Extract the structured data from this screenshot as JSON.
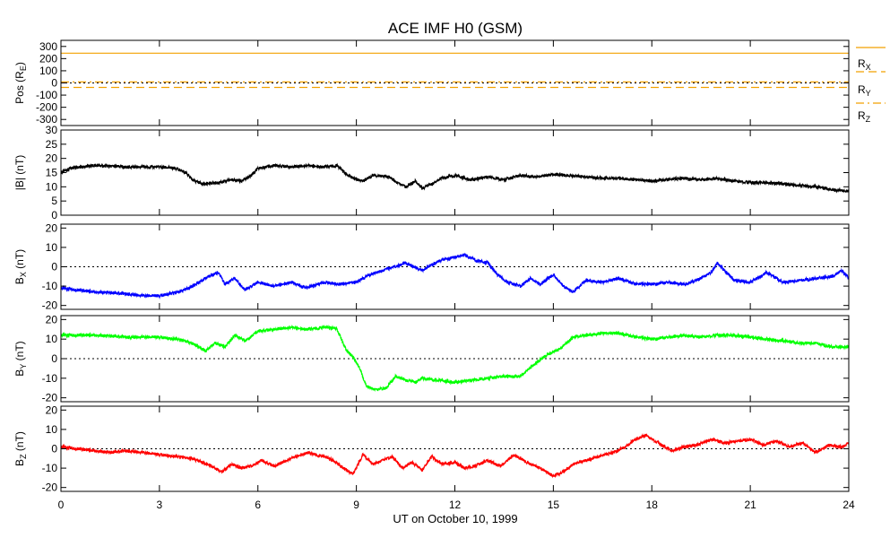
{
  "chart_data": {
    "title": "ACE IMF H0 (GSM)",
    "xlabel": "UT on October 10, 1999",
    "x_ticks": [
      "0",
      "3",
      "6",
      "9",
      "12",
      "15",
      "18",
      "21",
      "24"
    ],
    "xlim": [
      0,
      24
    ],
    "panels": [
      {
        "id": "pos",
        "type": "line",
        "ylabel": "Pos (R",
        "ylabel_sub": "E",
        "ylabel_end": ")",
        "ylim": [
          -350,
          350
        ],
        "y_ticks": [
          "300",
          "200",
          "100",
          "0",
          "-100",
          "-200",
          "-300"
        ],
        "y_tick_values": [
          300,
          200,
          100,
          0,
          -100,
          -200,
          -300
        ],
        "zero_line": true,
        "series": [
          {
            "name": "R",
            "sub": "X",
            "color": "#f2a100",
            "dash": "solid",
            "x": [
              0,
              24
            ],
            "y": [
              245,
              245
            ]
          },
          {
            "name": "R",
            "sub": "Y",
            "color": "#f2a100",
            "dash": "dash",
            "x": [
              0,
              24
            ],
            "y": [
              -37,
              -37
            ]
          },
          {
            "name": "R",
            "sub": "Z",
            "color": "#f2a100",
            "dash": "dashdot",
            "x": [
              0,
              24
            ],
            "y": [
              8,
              8
            ]
          }
        ]
      },
      {
        "id": "b",
        "type": "line",
        "ylabel": "|B| (nT)",
        "ylim": [
          0,
          30
        ],
        "y_ticks": [
          "30",
          "25",
          "20",
          "15",
          "10",
          "5",
          "0"
        ],
        "y_tick_values": [
          30,
          25,
          20,
          15,
          10,
          5,
          0
        ],
        "zero_line": false,
        "series": [
          {
            "name": "|B|",
            "color": "#000000",
            "x": [
              0,
              0.3,
              0.6,
              1,
              2,
              3,
              3.5,
              3.8,
              4,
              4.3,
              4.8,
              5.2,
              5.5,
              5.8,
              6,
              6.5,
              7,
              7.5,
              8,
              8.4,
              8.7,
              8.9,
              9.2,
              9.5,
              10,
              10.3,
              10.5,
              10.8,
              11,
              11.3,
              11.6,
              12,
              12.5,
              13,
              13.5,
              14,
              14.5,
              15,
              15.5,
              16,
              16.5,
              17,
              17.5,
              18,
              18.5,
              19,
              19.5,
              20,
              20.5,
              21,
              21.5,
              22,
              22.5,
              23,
              23.5,
              24
            ],
            "y": [
              15,
              16.5,
              17,
              17.5,
              17,
              17,
              16.5,
              15,
              12.5,
              11,
              11.5,
              12.5,
              12,
              14,
              16.5,
              17.5,
              17,
              17.5,
              17,
              17.5,
              14.5,
              13,
              12,
              14,
              13.5,
              11,
              10,
              12,
              9.5,
              11,
              13,
              14,
              12.5,
              13.5,
              12.5,
              14,
              13.5,
              14.5,
              14,
              13.5,
              13,
              13,
              12.5,
              12,
              12.5,
              13,
              12.5,
              13,
              12,
              11.5,
              11.5,
              11,
              10.5,
              10,
              9,
              8.5
            ]
          }
        ]
      },
      {
        "id": "bx",
        "type": "line",
        "ylabel": "B",
        "ylabel_sub": "X",
        "ylabel_end": " (nT)",
        "ylim": [
          -22,
          22
        ],
        "y_ticks": [
          "20",
          "10",
          "0",
          "-10",
          "-20"
        ],
        "y_tick_values": [
          20,
          10,
          0,
          -10,
          -20
        ],
        "zero_line": true,
        "series": [
          {
            "name": "Bx",
            "color": "#0000ff",
            "x": [
              0,
              0.5,
              1,
              1.5,
              2,
              2.5,
              3,
              3.3,
              3.6,
              3.9,
              4.2,
              4.5,
              4.8,
              5,
              5.3,
              5.6,
              6,
              6.5,
              7,
              7.5,
              8,
              8.5,
              9,
              9.3,
              9.6,
              10,
              10.5,
              11,
              11.5,
              12,
              12.3,
              12.7,
              13,
              13.3,
              13.6,
              14,
              14.3,
              14.6,
              15,
              15.3,
              15.6,
              16,
              16.5,
              17,
              17.5,
              18,
              18.5,
              19,
              19.5,
              19.8,
              20,
              20.5,
              21,
              21.5,
              22,
              22.5,
              23,
              23.5,
              23.8,
              24
            ],
            "y": [
              -11,
              -12,
              -13,
              -13.5,
              -14,
              -15,
              -15,
              -14,
              -13,
              -11,
              -8,
              -5,
              -3,
              -9,
              -6,
              -12,
              -8,
              -10,
              -8,
              -11,
              -8,
              -9,
              -8,
              -5,
              -3,
              -1,
              2,
              -2,
              3,
              5,
              6,
              3,
              2,
              -4,
              -8,
              -10,
              -6,
              -9,
              -4,
              -10,
              -13,
              -7,
              -8,
              -6,
              -9,
              -9,
              -8,
              -9,
              -6,
              -3,
              2,
              -7,
              -8,
              -3,
              -8,
              -7,
              -6,
              -5,
              -2,
              -6
            ]
          }
        ]
      },
      {
        "id": "by",
        "type": "line",
        "ylabel": "B",
        "ylabel_sub": "Y",
        "ylabel_end": " (nT)",
        "ylim": [
          -22,
          22
        ],
        "y_ticks": [
          "20",
          "10",
          "0",
          "-10",
          "-20"
        ],
        "y_tick_values": [
          20,
          10,
          0,
          -10,
          -20
        ],
        "zero_line": true,
        "series": [
          {
            "name": "By",
            "color": "#00ff00",
            "x": [
              0,
              0.5,
              1,
              1.5,
              2,
              2.5,
              3,
              3.5,
              3.8,
              4.1,
              4.4,
              4.7,
              5,
              5.3,
              5.6,
              6,
              6.5,
              7,
              7.5,
              8,
              8.4,
              8.7,
              8.9,
              9.1,
              9.3,
              9.6,
              9.9,
              10.2,
              10.5,
              10.8,
              11,
              11.5,
              12,
              12.5,
              13,
              13.5,
              14,
              14.4,
              14.8,
              15.2,
              15.6,
              16,
              16.5,
              17,
              17.5,
              18,
              18.5,
              19,
              19.5,
              20,
              20.5,
              21,
              21.5,
              22,
              22.5,
              23,
              23.5,
              24
            ],
            "y": [
              12,
              12,
              12,
              11.5,
              11,
              11,
              11,
              10,
              9,
              7,
              4,
              8,
              6,
              12,
              9,
              14,
              15,
              16,
              15,
              16,
              15.5,
              4,
              1,
              -5,
              -14,
              -16,
              -15,
              -9,
              -11,
              -12,
              -10,
              -11,
              -12,
              -11,
              -10,
              -9,
              -9,
              -3,
              2,
              5,
              11,
              12,
              13,
              13,
              11,
              10,
              11,
              12,
              11,
              12,
              12,
              11,
              10,
              9,
              8,
              8,
              6,
              6
            ]
          }
        ]
      },
      {
        "id": "bz",
        "type": "line",
        "ylabel": "B",
        "ylabel_sub": "Z",
        "ylabel_end": " (nT)",
        "ylim": [
          -22,
          22
        ],
        "y_ticks": [
          "20",
          "10",
          "0",
          "-10",
          "-20"
        ],
        "y_tick_values": [
          20,
          10,
          0,
          -10,
          -20
        ],
        "zero_line": true,
        "series": [
          {
            "name": "Bz",
            "color": "#ff0000",
            "x": [
              0,
              0.5,
              1,
              1.5,
              2,
              2.5,
              3,
              3.5,
              4,
              4.3,
              4.6,
              4.9,
              5.2,
              5.5,
              5.8,
              6.1,
              6.5,
              7,
              7.5,
              8,
              8.3,
              8.6,
              8.9,
              9.2,
              9.5,
              9.8,
              10.1,
              10.4,
              10.7,
              11,
              11.3,
              11.6,
              12,
              12.3,
              12.6,
              13,
              13.4,
              13.8,
              14.2,
              14.6,
              15,
              15.3,
              15.6,
              16,
              16.4,
              16.8,
              17.2,
              17.5,
              17.8,
              18.2,
              18.6,
              19,
              19.4,
              19.8,
              20.2,
              20.6,
              21,
              21.4,
              21.8,
              22.2,
              22.6,
              23,
              23.4,
              23.8,
              24
            ],
            "y": [
              1,
              0,
              -1,
              -2,
              -1,
              -2,
              -3,
              -4,
              -5,
              -7,
              -9,
              -12,
              -8,
              -10,
              -9,
              -6,
              -9,
              -5,
              -2,
              -4,
              -6,
              -10,
              -13,
              -3,
              -8,
              -6,
              -4,
              -10,
              -7,
              -11,
              -4,
              -8,
              -7,
              -10,
              -9,
              -6,
              -9,
              -3,
              -7,
              -10,
              -14,
              -12,
              -8,
              -6,
              -4,
              -2,
              1,
              5,
              7,
              3,
              -1,
              1,
              2,
              5,
              3,
              4,
              5,
              2,
              4,
              1,
              3,
              -2,
              2,
              1,
              3
            ]
          }
        ]
      }
    ],
    "legend": {
      "placement": "right-of-top-panel",
      "labels": [
        {
          "name": "R",
          "sub": "X"
        },
        {
          "name": "R",
          "sub": "Y"
        },
        {
          "name": "R",
          "sub": "Z"
        }
      ]
    }
  }
}
